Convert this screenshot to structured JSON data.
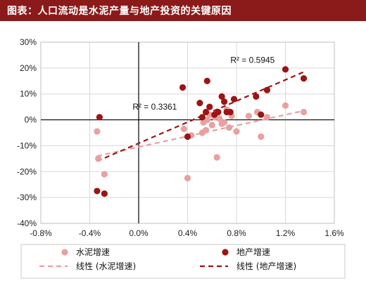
{
  "header": {
    "title": "图表：人口流动是水泥产量与地产投资的关键原因"
  },
  "chart_data": {
    "type": "scatter",
    "xlim": [
      -0.8,
      1.6
    ],
    "ylim": [
      -40,
      30
    ],
    "x_ticks": [
      "-0.8%",
      "-0.4%",
      "0.0%",
      "0.4%",
      "0.8%",
      "1.2%",
      "1.6%"
    ],
    "x_tick_values": [
      -0.8,
      -0.4,
      0.0,
      0.4,
      0.8,
      1.2,
      1.6
    ],
    "y_ticks": [
      "30%",
      "20%",
      "10%",
      "0%",
      "-10%",
      "-20%",
      "-30%",
      "-40%"
    ],
    "y_tick_values": [
      30,
      20,
      10,
      0,
      -10,
      -20,
      -30,
      -40
    ],
    "grid": true,
    "legend_position": "bottom",
    "series": [
      {
        "name": "水泥增速",
        "color": "#e8a0a0",
        "points": [
          [
            -0.34,
            -4.5
          ],
          [
            -0.33,
            -15
          ],
          [
            -0.28,
            -21
          ],
          [
            0.37,
            -3.5
          ],
          [
            0.4,
            -22.5
          ],
          [
            0.43,
            -6
          ],
          [
            0.52,
            -5
          ],
          [
            0.53,
            -1
          ],
          [
            0.55,
            -4
          ],
          [
            0.56,
            0
          ],
          [
            0.58,
            2
          ],
          [
            0.6,
            -2
          ],
          [
            0.62,
            1
          ],
          [
            0.64,
            -14.5
          ],
          [
            0.66,
            0.5
          ],
          [
            0.68,
            -1.5
          ],
          [
            0.7,
            -1
          ],
          [
            0.72,
            4
          ],
          [
            0.74,
            -3
          ],
          [
            0.76,
            1.5
          ],
          [
            0.8,
            -4.5
          ],
          [
            0.9,
            1.5
          ],
          [
            0.97,
            3
          ],
          [
            1.0,
            -6.5
          ],
          [
            1.05,
            1
          ],
          [
            1.2,
            5.5
          ],
          [
            1.35,
            3
          ]
        ]
      },
      {
        "name": "地产增速",
        "color": "#9b1515",
        "points": [
          [
            -0.32,
            1
          ],
          [
            -0.34,
            -27.5
          ],
          [
            -0.28,
            -28.5
          ],
          [
            0.36,
            12.5
          ],
          [
            0.4,
            -6.5
          ],
          [
            0.5,
            6.5
          ],
          [
            0.52,
            1
          ],
          [
            0.55,
            3
          ],
          [
            0.56,
            15
          ],
          [
            0.58,
            5
          ],
          [
            0.62,
            2
          ],
          [
            0.65,
            3
          ],
          [
            0.68,
            9
          ],
          [
            0.7,
            7
          ],
          [
            0.72,
            3
          ],
          [
            0.75,
            3
          ],
          [
            0.78,
            8
          ],
          [
            0.96,
            9
          ],
          [
            1.0,
            2
          ],
          [
            1.05,
            11.5
          ],
          [
            1.2,
            19.5
          ],
          [
            1.35,
            16
          ]
        ]
      }
    ],
    "trendlines": [
      {
        "name": "线性 (水泥增速)",
        "color": "#e8a0a0",
        "x": [
          -0.34,
          1.35
        ],
        "y": [
          -14,
          3.5
        ]
      },
      {
        "name": "线性 (地产增速)",
        "color": "#9b1515",
        "x": [
          -0.34,
          1.35
        ],
        "y": [
          -16,
          18.5
        ]
      }
    ],
    "annotations": [
      {
        "text": "R² = 0.5945",
        "x": 0.75,
        "y": 22
      },
      {
        "text": "R² = 0.3361",
        "x": -0.05,
        "y": 4
      }
    ]
  }
}
